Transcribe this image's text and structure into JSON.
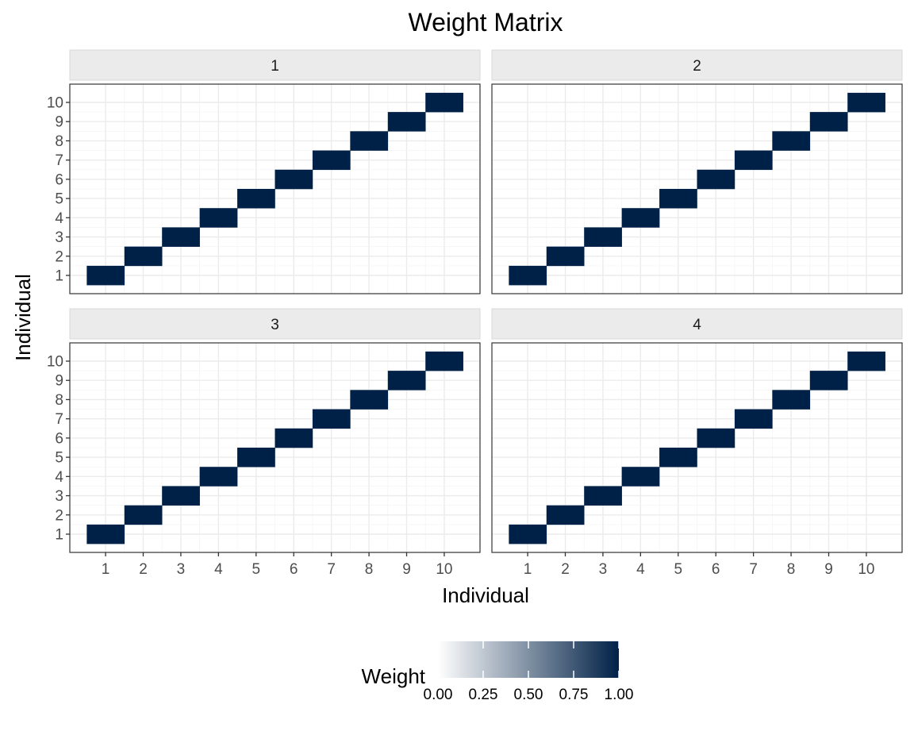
{
  "chart_data": {
    "type": "heatmap",
    "title": "Weight Matrix",
    "xlabel": "Individual",
    "ylabel": "Individual",
    "x_ticks": [
      "1",
      "2",
      "3",
      "4",
      "5",
      "6",
      "7",
      "8",
      "9",
      "10"
    ],
    "y_ticks": [
      "1",
      "2",
      "3",
      "4",
      "5",
      "6",
      "7",
      "8",
      "9",
      "10"
    ],
    "panels": [
      {
        "label": "1",
        "cells": [
          [
            1,
            1,
            1
          ],
          [
            2,
            2,
            1
          ],
          [
            3,
            3,
            1
          ],
          [
            4,
            4,
            1
          ],
          [
            5,
            5,
            1
          ],
          [
            6,
            6,
            1
          ],
          [
            7,
            7,
            1
          ],
          [
            8,
            8,
            1
          ],
          [
            9,
            9,
            1
          ],
          [
            10,
            10,
            1
          ]
        ]
      },
      {
        "label": "2",
        "cells": [
          [
            1,
            1,
            1
          ],
          [
            2,
            2,
            1
          ],
          [
            3,
            3,
            1
          ],
          [
            4,
            4,
            1
          ],
          [
            5,
            5,
            1
          ],
          [
            6,
            6,
            1
          ],
          [
            7,
            7,
            1
          ],
          [
            8,
            8,
            1
          ],
          [
            9,
            9,
            1
          ],
          [
            10,
            10,
            1
          ]
        ]
      },
      {
        "label": "3",
        "cells": [
          [
            1,
            1,
            1
          ],
          [
            2,
            2,
            1
          ],
          [
            3,
            3,
            1
          ],
          [
            4,
            4,
            1
          ],
          [
            5,
            5,
            1
          ],
          [
            6,
            6,
            1
          ],
          [
            7,
            7,
            1
          ],
          [
            8,
            8,
            1
          ],
          [
            9,
            9,
            1
          ],
          [
            10,
            10,
            1
          ]
        ]
      },
      {
        "label": "4",
        "cells": [
          [
            1,
            1,
            1
          ],
          [
            2,
            2,
            1
          ],
          [
            3,
            3,
            1
          ],
          [
            4,
            4,
            1
          ],
          [
            5,
            5,
            1
          ],
          [
            6,
            6,
            1
          ],
          [
            7,
            7,
            1
          ],
          [
            8,
            8,
            1
          ],
          [
            9,
            9,
            1
          ],
          [
            10,
            10,
            1
          ]
        ]
      }
    ],
    "color_scale": {
      "low": "#ffffff",
      "high": "#002147",
      "range": [
        0,
        1
      ]
    },
    "legend": {
      "title": "Weight",
      "position": "bottom",
      "ticks": [
        "0.00",
        "0.25",
        "0.50",
        "0.75",
        "1.00"
      ],
      "tick_values": [
        0,
        0.25,
        0.5,
        0.75,
        1
      ]
    },
    "grid": true
  }
}
